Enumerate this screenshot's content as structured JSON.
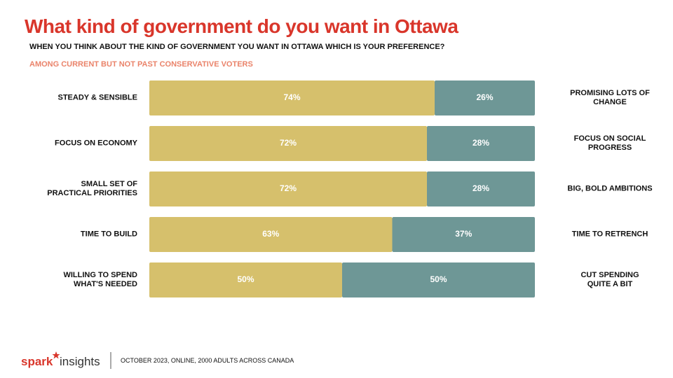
{
  "chart_data": {
    "type": "bar",
    "title": "What kind of government do you want in Ottawa",
    "subtitle": "WHEN YOU THINK ABOUT THE KIND OF GOVERNMENT YOU WANT IN OTTAWA WHICH IS YOUR PREFERENCE?",
    "note": "AMONG CURRENT BUT NOT PAST CONSERVATIVE VOTERS",
    "categories": [
      "STEADY & SENSIBLE",
      "FOCUS ON ECONOMY",
      "SMALL SET OF\nPRACTICAL PRIORITIES",
      "TIME TO BUILD",
      "WILLING TO SPEND\nWHAT'S NEEDED"
    ],
    "right_labels": [
      "PROMISING LOTS OF\nCHANGE",
      "FOCUS ON SOCIAL\nPROGRESS",
      "BIG, BOLD AMBITIONS",
      "TIME TO RETRENCH",
      "CUT SPENDING\nQUITE A BIT"
    ],
    "series": [
      {
        "color": "#d6c06c",
        "values": [
          74,
          72,
          72,
          63,
          50
        ],
        "value_labels": [
          "74%",
          "72%",
          "72%",
          "63%",
          "50%"
        ]
      },
      {
        "color": "#6e9796",
        "values": [
          26,
          28,
          28,
          37,
          50
        ],
        "value_labels": [
          "26%",
          "28%",
          "28%",
          "37%",
          "50%"
        ]
      }
    ],
    "xlim": [
      0,
      100
    ]
  },
  "footer": {
    "brand": "spark",
    "brand_2": "insights",
    "source": "OCTOBER 2023, ONLINE, 2000 ADULTS ACROSS CANADA"
  }
}
